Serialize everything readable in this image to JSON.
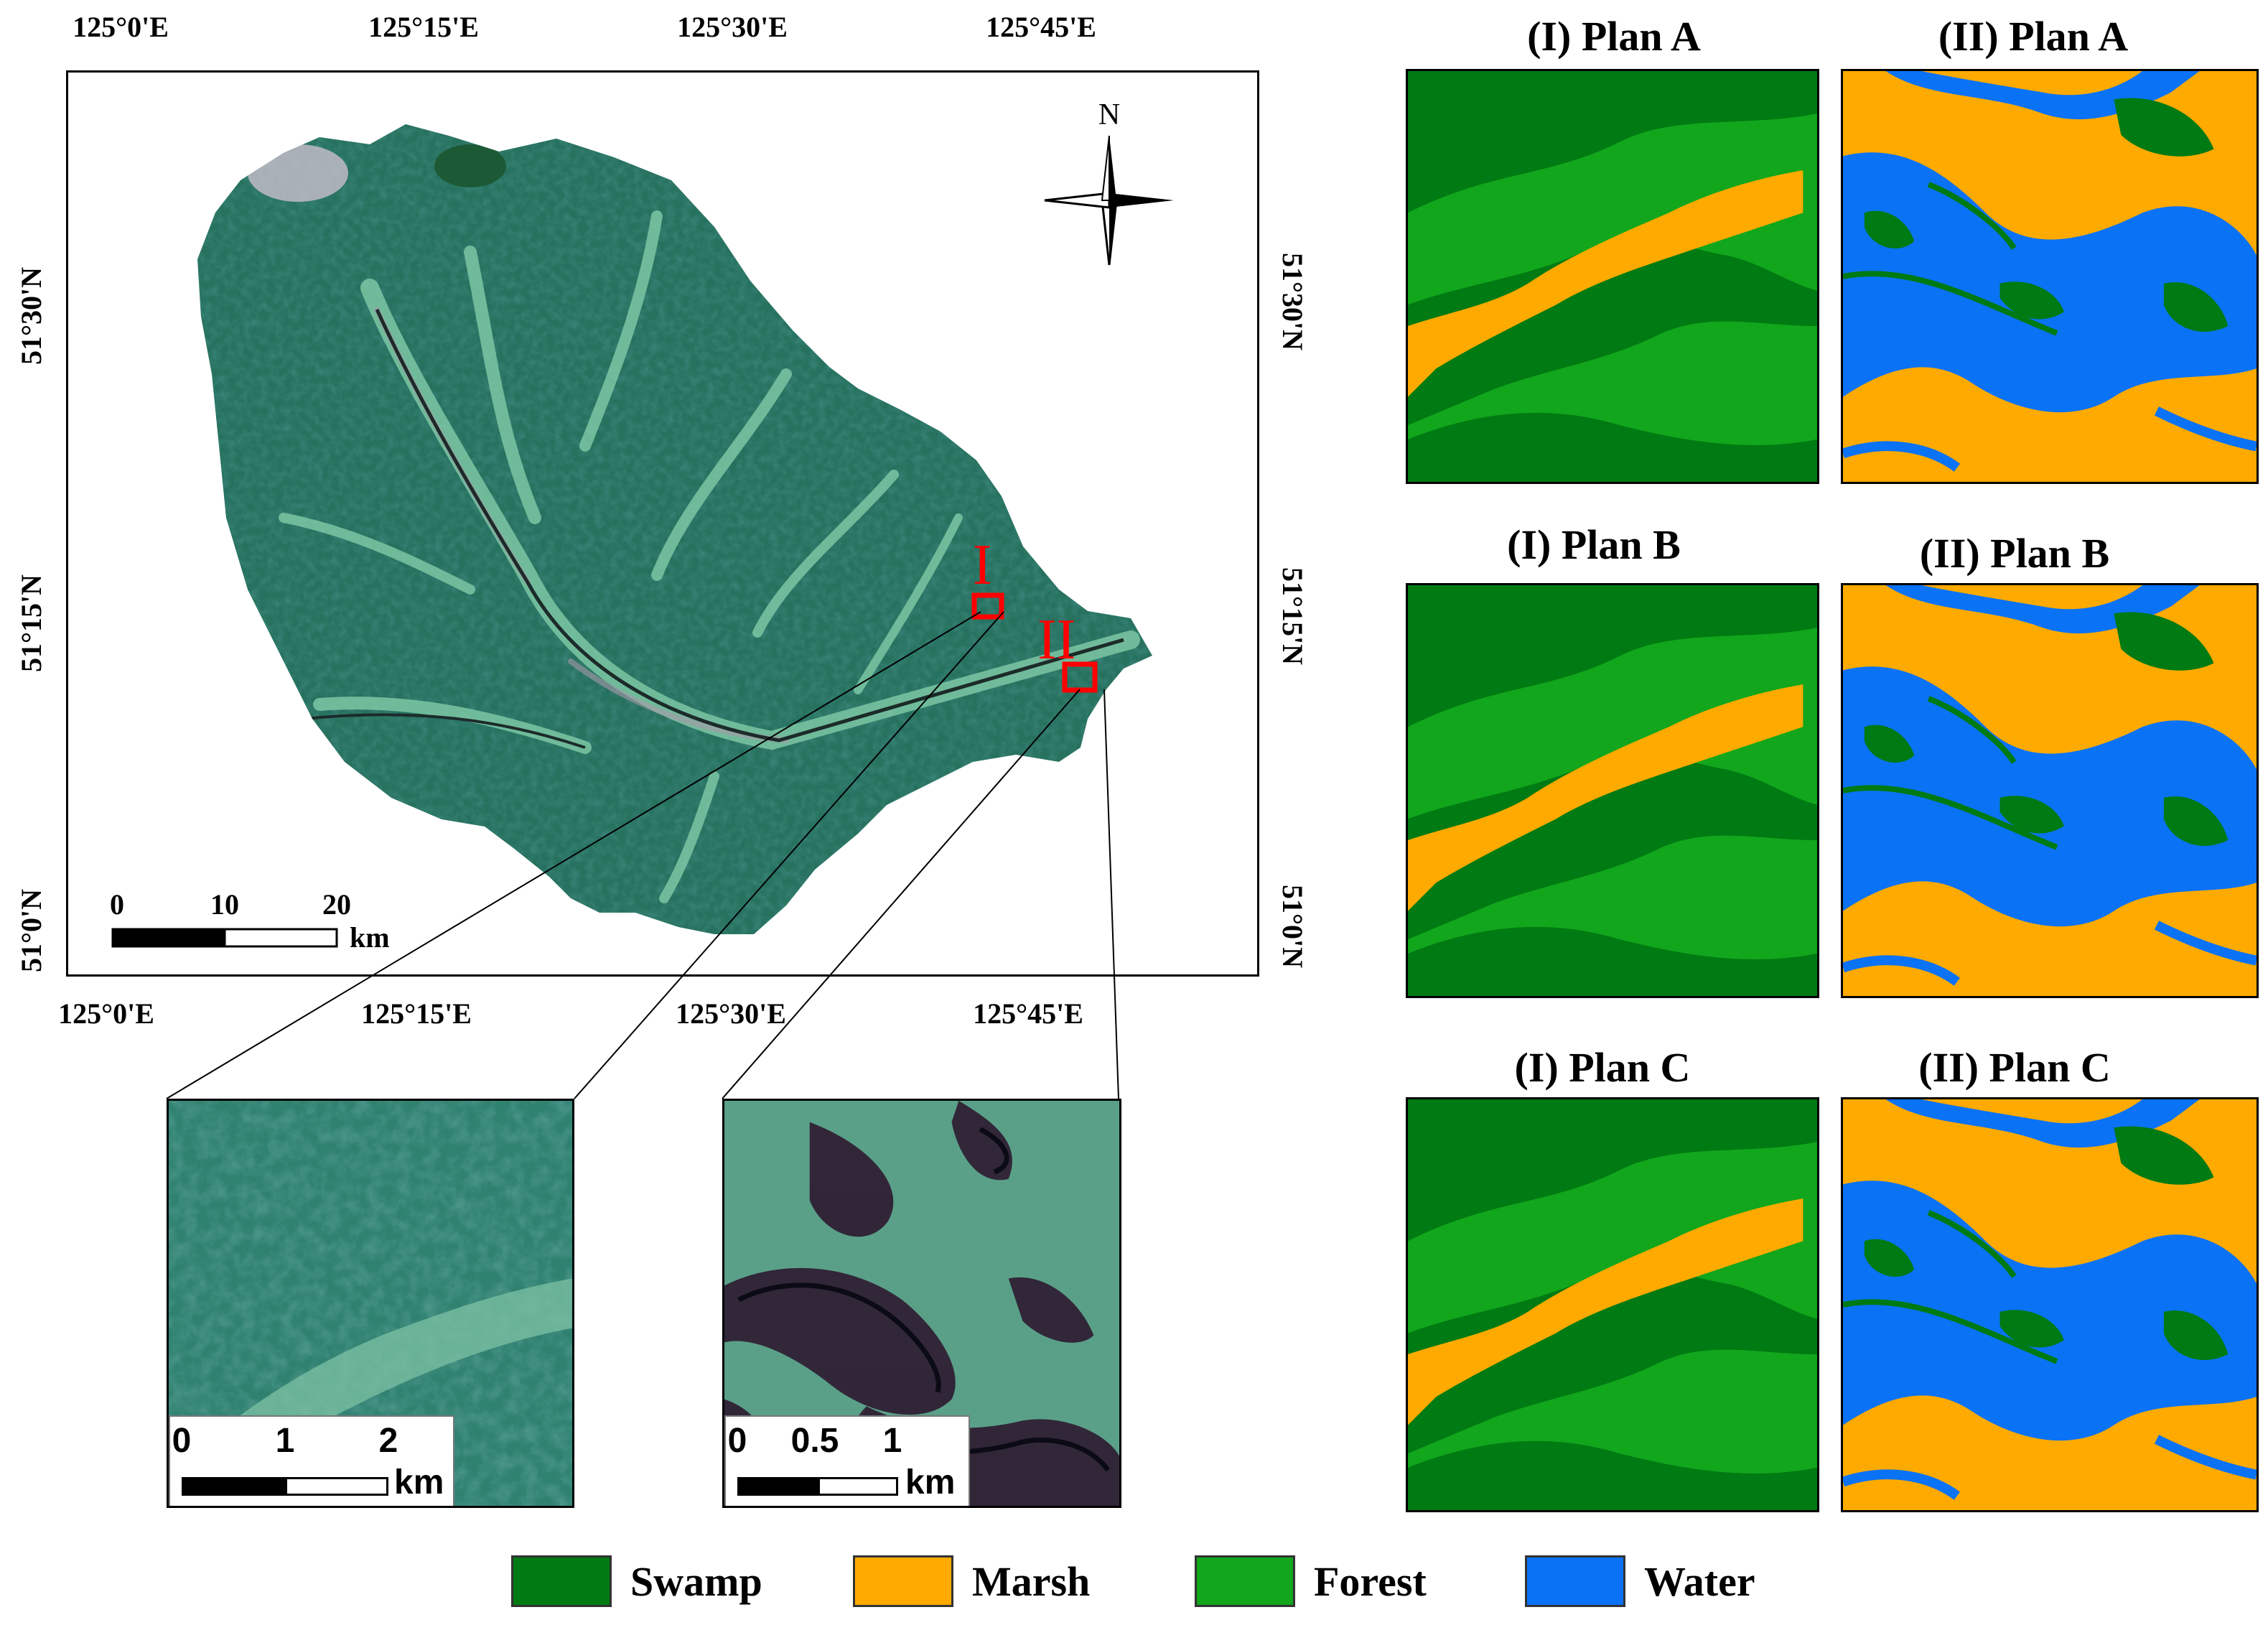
{
  "map": {
    "top_ticks": [
      "125°0'E",
      "125°15'E",
      "125°30'E",
      "125°45'E"
    ],
    "bottom_ticks": [
      "125°0'E",
      "125°15'E",
      "125°30'E",
      "125°45'E"
    ],
    "left_ticks": [
      "51°30'N",
      "51°15'N",
      "51°0'N"
    ],
    "right_ticks": [
      "51°30'N",
      "51°15'N",
      "51°0'N"
    ],
    "north_label": "N",
    "site_labels": [
      "I",
      "II"
    ],
    "scalebar": {
      "ticks": [
        "0",
        "10",
        "20"
      ],
      "unit": "km"
    }
  },
  "insets": {
    "site_I_scalebar": {
      "ticks": [
        "0",
        "1",
        "2"
      ],
      "unit": "km"
    },
    "site_II_scalebar": {
      "ticks": [
        "0",
        "0.5",
        "1"
      ],
      "unit": "km"
    }
  },
  "panels": [
    {
      "title": "(I) Plan A"
    },
    {
      "title": "(II) Plan A"
    },
    {
      "title": "(I) Plan B"
    },
    {
      "title": "(II) Plan B"
    },
    {
      "title": "(I) Plan C"
    },
    {
      "title": "(II) Plan C"
    }
  ],
  "legend": [
    {
      "label": "Swamp",
      "color": "#007a12"
    },
    {
      "label": "Marsh",
      "color": "#ffaa00"
    },
    {
      "label": "Forest",
      "color": "#11a61c"
    },
    {
      "label": "Water",
      "color": "#0a72f5"
    }
  ]
}
